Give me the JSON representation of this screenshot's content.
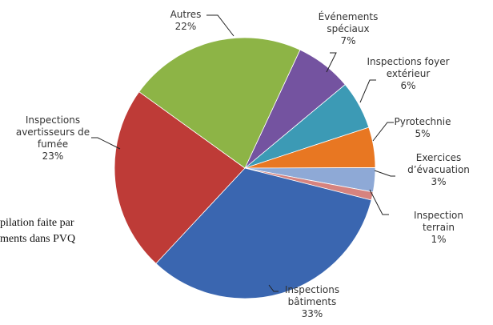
{
  "chart_data": {
    "type": "pie",
    "categories": [
      "Événements\nspéciaux",
      "Inspections foyer\nextérieur",
      "Pyrotechnie",
      "Exercices\nd’évacuation",
      "Inspection terrain",
      "Inspections\nbâtiments",
      "Inspections\navertisseurs de\nfumée",
      "Autres"
    ],
    "values": [
      7,
      6,
      5,
      3,
      1,
      33,
      23,
      22
    ],
    "value_labels": [
      "7%",
      "6%",
      "5%",
      "3%",
      "1%",
      "33%",
      "23%",
      "22%"
    ],
    "colors": [
      "#7453a0",
      "#3c9ab5",
      "#e87722",
      "#8ea9d6",
      "#d6837f",
      "#3a66b0",
      "#be3b37",
      "#8db446"
    ]
  },
  "background_text": [
    "pilation faite par",
    "ments dans PVQ"
  ]
}
